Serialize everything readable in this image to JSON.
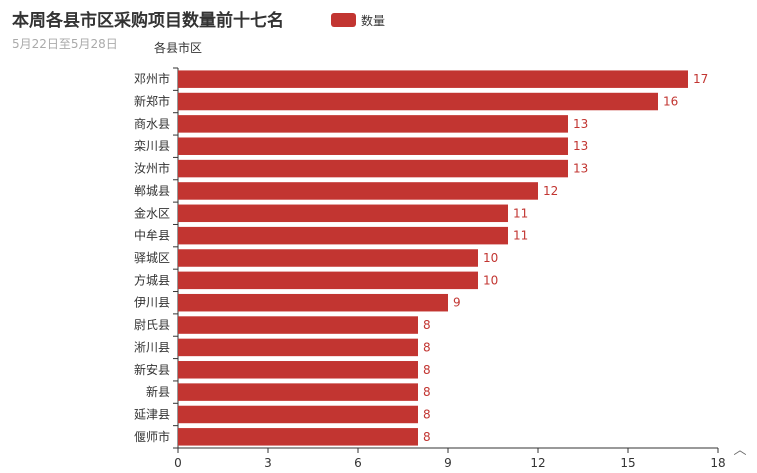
{
  "chart_data": {
    "type": "bar",
    "orientation": "horizontal",
    "title": "本周各县市区采购项目数量前十七名",
    "subtitle": "5月22日至5月28日",
    "ylabel": "各县市区",
    "xlabel": "",
    "legend": {
      "entries": [
        "数量"
      ],
      "placement": "top"
    },
    "categories": [
      "邓州市",
      "新郑市",
      "商水县",
      "栾川县",
      "汝州市",
      "郸城县",
      "金水区",
      "中牟县",
      "驿城区",
      "方城县",
      "伊川县",
      "尉氏县",
      "淅川县",
      "新安县",
      "新县",
      "延津县",
      "偃师市"
    ],
    "series": [
      {
        "name": "数量",
        "values": [
          17,
          16,
          13,
          13,
          13,
          12,
          11,
          11,
          10,
          10,
          9,
          8,
          8,
          8,
          8,
          8,
          8
        ]
      }
    ],
    "xlim": [
      0,
      18
    ],
    "xticks": [
      "0",
      "3",
      "6",
      "9",
      "12",
      "15",
      "18"
    ],
    "grid": false,
    "color": "#c23531"
  },
  "ui": {
    "scroll_up_glyph": "︿"
  }
}
